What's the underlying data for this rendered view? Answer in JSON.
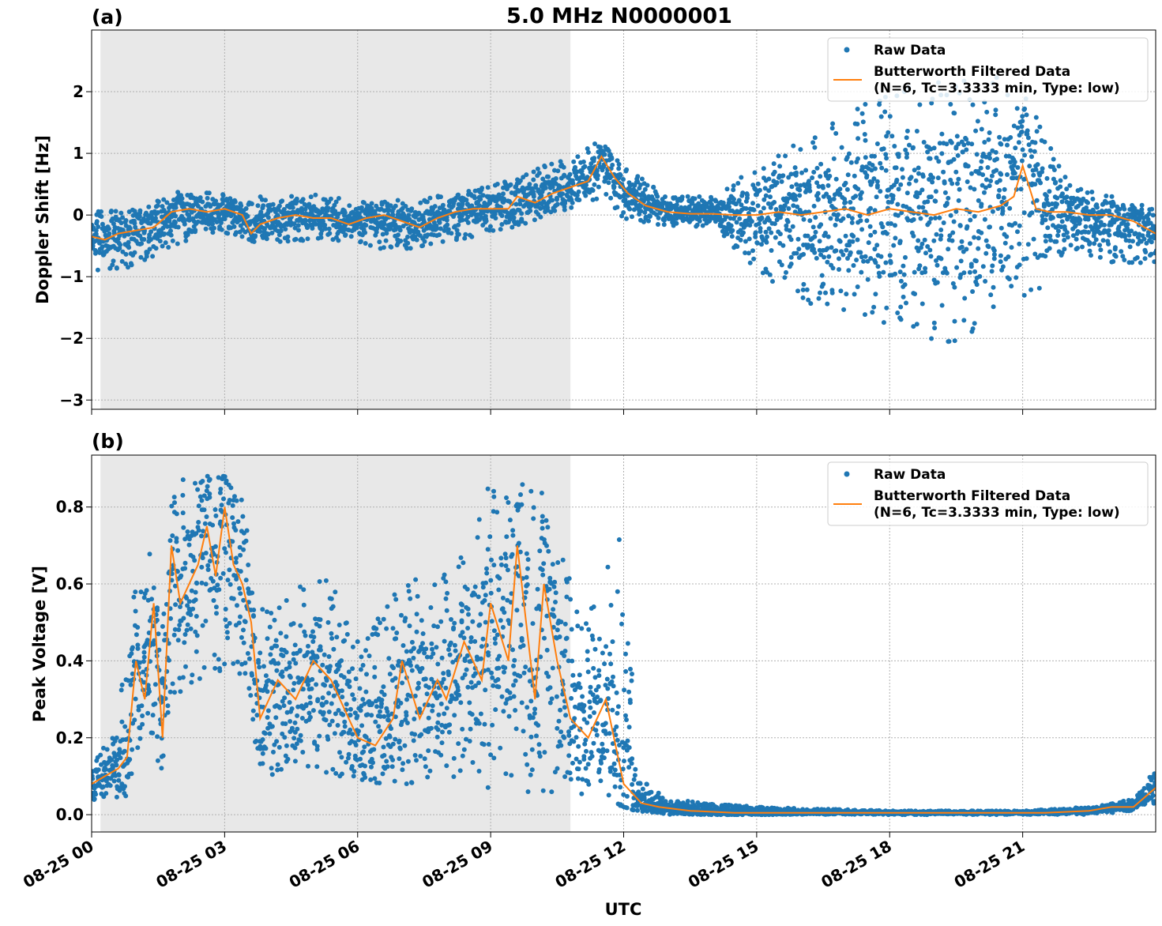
{
  "figure": {
    "title": "5.0 MHz N0000001",
    "xlabel": "UTC"
  },
  "colors": {
    "raw": "#1f77b4",
    "filtered": "#ff7f0e",
    "shade": "#e8e8e8",
    "grid": "#b0b0b0"
  },
  "chart_data": [
    {
      "type": "scatter",
      "panel_label": "(a)",
      "ylabel": "Doppler Shift [Hz]",
      "xlim_hours": [
        0,
        24
      ],
      "ylim": [
        -3.15,
        3.0
      ],
      "xticks": [
        {
          "hour": 0,
          "label": "08-25 00"
        },
        {
          "hour": 3,
          "label": "08-25 03"
        },
        {
          "hour": 6,
          "label": "08-25 06"
        },
        {
          "hour": 9,
          "label": "08-25 09"
        },
        {
          "hour": 12,
          "label": "08-25 12"
        },
        {
          "hour": 15,
          "label": "08-25 15"
        },
        {
          "hour": 18,
          "label": "08-25 18"
        },
        {
          "hour": 21,
          "label": "08-25 21"
        }
      ],
      "yticks": [
        {
          "value": 2,
          "label": "2"
        },
        {
          "value": 1,
          "label": "1"
        },
        {
          "value": 0,
          "label": "0"
        },
        {
          "value": -1,
          "label": "−1"
        },
        {
          "value": -2,
          "label": "−2"
        },
        {
          "value": -3,
          "label": "−3"
        }
      ],
      "shaded_span_hours": [
        0.2,
        10.8
      ],
      "grid": true,
      "legend_position": "top-right",
      "legend": [
        "Raw Data",
        "Butterworth Filtered Data",
        "(N=6, Tc=3.3333 min, Type: low)"
      ],
      "filtered_series": {
        "name": "Butterworth Filtered Data",
        "x_hours": [
          0,
          0.3,
          0.6,
          1.0,
          1.4,
          1.8,
          2.2,
          2.6,
          3.0,
          3.4,
          3.6,
          3.8,
          4.2,
          4.6,
          5.0,
          5.4,
          5.8,
          6.2,
          6.6,
          7.0,
          7.4,
          7.8,
          8.2,
          8.6,
          9.0,
          9.4,
          9.6,
          10.0,
          10.4,
          10.8,
          11.2,
          11.5,
          11.8,
          12.1,
          12.5,
          13.0,
          13.5,
          14.0,
          14.5,
          15.0,
          15.5,
          16.0,
          16.5,
          17.0,
          17.5,
          18.0,
          18.5,
          19.0,
          19.5,
          20.0,
          20.5,
          20.8,
          21.0,
          21.3,
          21.6,
          22.0,
          22.5,
          23.0,
          23.5,
          24.0
        ],
        "y": [
          -0.35,
          -0.4,
          -0.3,
          -0.25,
          -0.2,
          0.05,
          0.1,
          0.05,
          0.1,
          0.0,
          -0.3,
          -0.15,
          -0.05,
          0.0,
          -0.05,
          -0.05,
          -0.15,
          -0.05,
          0.0,
          -0.1,
          -0.2,
          -0.05,
          0.05,
          0.1,
          0.1,
          0.1,
          0.3,
          0.2,
          0.35,
          0.45,
          0.55,
          0.95,
          0.6,
          0.35,
          0.15,
          0.05,
          0.02,
          0.02,
          0.0,
          0.0,
          0.05,
          0.0,
          0.05,
          0.1,
          0.0,
          0.1,
          0.05,
          0.0,
          0.1,
          0.05,
          0.15,
          0.3,
          0.8,
          0.1,
          0.05,
          0.05,
          0.0,
          0.0,
          -0.1,
          -0.3
        ]
      },
      "raw_band": {
        "name": "Raw Data",
        "x_hours": [
          0,
          1,
          2,
          3,
          4,
          5,
          6,
          7,
          8,
          9,
          10,
          11,
          11.5,
          12,
          13,
          14,
          15,
          16,
          17,
          18,
          19,
          20,
          21,
          22,
          23,
          24
        ],
        "upper": [
          0.05,
          0.1,
          0.4,
          0.35,
          0.3,
          0.35,
          0.25,
          0.25,
          0.35,
          0.5,
          0.75,
          1.0,
          1.3,
          0.8,
          0.3,
          0.3,
          0.8,
          1.2,
          1.7,
          2.0,
          2.2,
          2.3,
          2.2,
          0.6,
          0.3,
          0.1
        ],
        "lower": [
          -0.9,
          -0.85,
          -0.5,
          -0.3,
          -0.5,
          -0.4,
          -0.5,
          -0.6,
          -0.45,
          -0.3,
          -0.1,
          0.1,
          0.3,
          -0.1,
          -0.2,
          -0.2,
          -0.9,
          -1.4,
          -1.6,
          -1.9,
          -2.1,
          -2.0,
          -1.7,
          -0.5,
          -0.8,
          -0.8
        ]
      }
    },
    {
      "type": "scatter",
      "panel_label": "(b)",
      "ylabel": "Peak Voltage [V]",
      "xlim_hours": [
        0,
        24
      ],
      "ylim": [
        -0.045,
        0.935
      ],
      "xticks": [
        {
          "hour": 0,
          "label": "08-25 00"
        },
        {
          "hour": 3,
          "label": "08-25 03"
        },
        {
          "hour": 6,
          "label": "08-25 06"
        },
        {
          "hour": 9,
          "label": "08-25 09"
        },
        {
          "hour": 12,
          "label": "08-25 12"
        },
        {
          "hour": 15,
          "label": "08-25 15"
        },
        {
          "hour": 18,
          "label": "08-25 18"
        },
        {
          "hour": 21,
          "label": "08-25 21"
        }
      ],
      "yticks": [
        {
          "value": 0.8,
          "label": "0.8"
        },
        {
          "value": 0.6,
          "label": "0.6"
        },
        {
          "value": 0.4,
          "label": "0.4"
        },
        {
          "value": 0.2,
          "label": "0.2"
        },
        {
          "value": 0.0,
          "label": "0.0"
        }
      ],
      "shaded_span_hours": [
        0.2,
        10.8
      ],
      "grid": true,
      "legend_position": "top-right",
      "legend": [
        "Raw Data",
        "Butterworth Filtered Data",
        "(N=6, Tc=3.3333 min, Type: low)"
      ],
      "filtered_series": {
        "name": "Butterworth Filtered Data",
        "x_hours": [
          0,
          0.3,
          0.6,
          0.8,
          1.0,
          1.2,
          1.4,
          1.6,
          1.8,
          2.0,
          2.2,
          2.4,
          2.6,
          2.8,
          3.0,
          3.2,
          3.4,
          3.6,
          3.8,
          4.2,
          4.6,
          5.0,
          5.4,
          5.8,
          6.0,
          6.4,
          6.8,
          7.0,
          7.4,
          7.8,
          8.0,
          8.4,
          8.8,
          9.0,
          9.4,
          9.6,
          10.0,
          10.2,
          10.5,
          10.8,
          11.2,
          11.6,
          12.0,
          12.4,
          12.8,
          13.5,
          14.5,
          15.5,
          16.5,
          17.5,
          18.5,
          19.5,
          20.5,
          21.5,
          22.5,
          23.0,
          23.5,
          24.0
        ],
        "y": [
          0.08,
          0.1,
          0.12,
          0.15,
          0.4,
          0.3,
          0.55,
          0.2,
          0.7,
          0.55,
          0.6,
          0.65,
          0.75,
          0.62,
          0.8,
          0.65,
          0.6,
          0.5,
          0.25,
          0.35,
          0.3,
          0.4,
          0.35,
          0.25,
          0.2,
          0.18,
          0.25,
          0.4,
          0.25,
          0.35,
          0.3,
          0.45,
          0.35,
          0.55,
          0.4,
          0.7,
          0.3,
          0.6,
          0.4,
          0.25,
          0.2,
          0.3,
          0.08,
          0.03,
          0.02,
          0.01,
          0.005,
          0.005,
          0.005,
          0.005,
          0.005,
          0.005,
          0.005,
          0.005,
          0.01,
          0.02,
          0.02,
          0.07
        ]
      },
      "raw_band": {
        "name": "Raw Data",
        "x_hours": [
          0,
          0.5,
          1.0,
          1.3,
          1.6,
          1.8,
          2.0,
          2.5,
          3.0,
          3.4,
          3.7,
          4.0,
          5.0,
          5.5,
          6.0,
          7.0,
          8.0,
          8.5,
          9.0,
          9.5,
          10.0,
          10.5,
          11.0,
          11.5,
          12.0,
          12.3,
          13.0,
          15.0,
          18.0,
          21.0,
          22.5,
          23.5,
          23.8,
          24.0
        ],
        "upper": [
          0.15,
          0.2,
          0.6,
          0.7,
          0.5,
          0.85,
          0.88,
          0.88,
          0.88,
          0.85,
          0.5,
          0.6,
          0.6,
          0.65,
          0.45,
          0.6,
          0.65,
          0.7,
          0.88,
          0.85,
          0.88,
          0.75,
          0.5,
          0.6,
          0.8,
          0.1,
          0.04,
          0.02,
          0.01,
          0.01,
          0.02,
          0.04,
          0.08,
          0.13
        ],
        "lower": [
          0.03,
          0.04,
          0.05,
          0.2,
          0.1,
          0.3,
          0.3,
          0.35,
          0.35,
          0.3,
          0.15,
          0.1,
          0.1,
          0.1,
          0.08,
          0.08,
          0.08,
          0.08,
          0.05,
          0.08,
          0.05,
          0.05,
          0.05,
          0.05,
          0.02,
          0.01,
          0.0,
          0.0,
          0.0,
          0.0,
          0.0,
          0.01,
          0.02,
          0.03
        ]
      }
    }
  ]
}
